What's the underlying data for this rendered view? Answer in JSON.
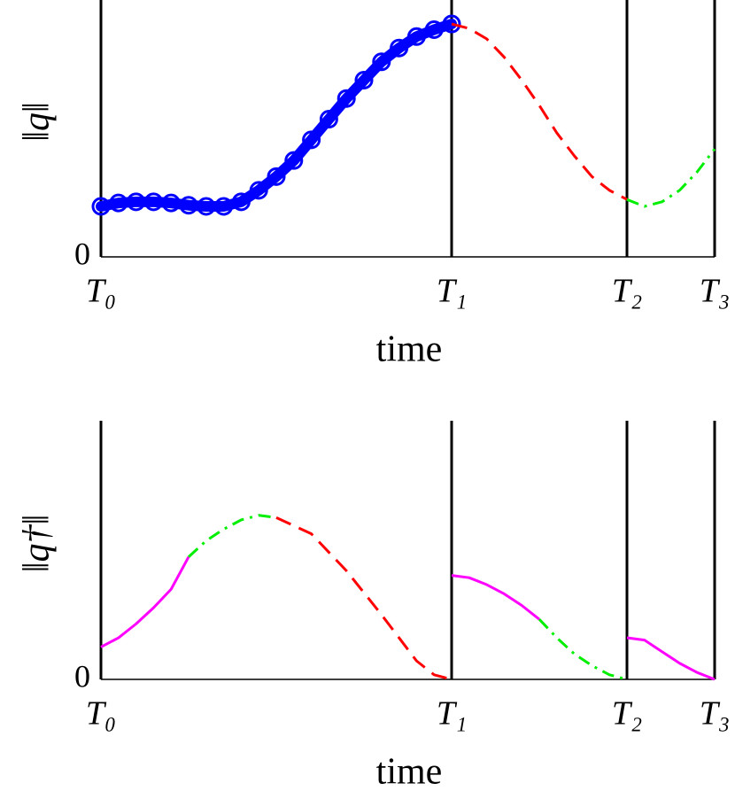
{
  "chart_data": [
    {
      "type": "line",
      "xlabel": "time",
      "ylabel": "‖q‖",
      "xlim": [
        0,
        1.75
      ],
      "ylim": [
        0,
        1.1
      ],
      "xticks": [
        {
          "value": 0,
          "label": "T₀"
        },
        {
          "value": 1,
          "label": "T₁"
        },
        {
          "value": 1.5,
          "label": "T₂"
        },
        {
          "value": 1.75,
          "label": "T₃"
        }
      ],
      "yticks": [
        0
      ],
      "series": [
        {
          "color": "#0000ff",
          "style": "circles",
          "x": [
            0,
            0.05,
            0.1,
            0.15,
            0.2,
            0.25,
            0.3,
            0.35,
            0.4,
            0.45,
            0.5,
            0.55,
            0.6,
            0.65,
            0.7,
            0.75,
            0.8,
            0.85,
            0.9,
            0.95,
            1.0
          ],
          "values": [
            0.22,
            0.235,
            0.24,
            0.24,
            0.235,
            0.225,
            0.22,
            0.22,
            0.24,
            0.29,
            0.35,
            0.42,
            0.51,
            0.6,
            0.69,
            0.77,
            0.85,
            0.91,
            0.96,
            0.99,
            1.015
          ]
        },
        {
          "color": "#ff0000",
          "style": "dashed",
          "x": [
            1.0,
            1.05,
            1.1,
            1.15,
            1.2,
            1.25,
            1.3,
            1.35,
            1.4,
            1.45,
            1.5
          ],
          "values": [
            1.015,
            0.995,
            0.95,
            0.87,
            0.77,
            0.66,
            0.54,
            0.44,
            0.35,
            0.29,
            0.25
          ]
        },
        {
          "color": "#00ee00",
          "style": "dashdot",
          "x": [
            1.5,
            1.55,
            1.6,
            1.65,
            1.7,
            1.75
          ],
          "values": [
            0.25,
            0.22,
            0.24,
            0.29,
            0.37,
            0.47
          ]
        }
      ]
    },
    {
      "type": "line",
      "xlabel": "time",
      "ylabel": "‖q†‖",
      "xlim": [
        0,
        1.75
      ],
      "ylim": [
        0,
        1.1
      ],
      "xticks": [
        {
          "value": 0,
          "label": "T₀"
        },
        {
          "value": 1,
          "label": "T₁"
        },
        {
          "value": 1.5,
          "label": "T₂"
        },
        {
          "value": 1.75,
          "label": "T₃"
        }
      ],
      "yticks": [
        0
      ],
      "series": [
        {
          "color": "#ff00ff",
          "style": "solid",
          "x": [
            0,
            0.05,
            0.1,
            0.15,
            0.2,
            0.25
          ],
          "values": [
            0.14,
            0.18,
            0.24,
            0.31,
            0.39,
            0.53
          ]
        },
        {
          "color": "#00ee00",
          "style": "dashdot",
          "x": [
            0.25,
            0.3,
            0.35,
            0.4,
            0.45,
            0.5
          ],
          "values": [
            0.53,
            0.6,
            0.65,
            0.69,
            0.71,
            0.7
          ]
        },
        {
          "color": "#ff0000",
          "style": "dashed",
          "x": [
            0.5,
            0.6,
            0.7,
            0.8,
            0.9,
            0.95,
            1.0
          ],
          "values": [
            0.7,
            0.63,
            0.47,
            0.28,
            0.08,
            0.02,
            0
          ]
        },
        {
          "color": "#ff00ff",
          "style": "solid",
          "x": [
            1.0,
            1.05,
            1.1,
            1.15,
            1.2,
            1.25
          ],
          "values": [
            0.45,
            0.44,
            0.41,
            0.37,
            0.32,
            0.26
          ]
        },
        {
          "color": "#00ee00",
          "style": "dashdot",
          "x": [
            1.25,
            1.3,
            1.35,
            1.4,
            1.45,
            1.5
          ],
          "values": [
            0.26,
            0.18,
            0.11,
            0.06,
            0.02,
            0
          ]
        },
        {
          "color": "#ff00ff",
          "style": "solid",
          "x": [
            1.5,
            1.55,
            1.6,
            1.65,
            1.7,
            1.75
          ],
          "values": [
            0.18,
            0.17,
            0.12,
            0.07,
            0.03,
            0
          ]
        }
      ]
    }
  ]
}
